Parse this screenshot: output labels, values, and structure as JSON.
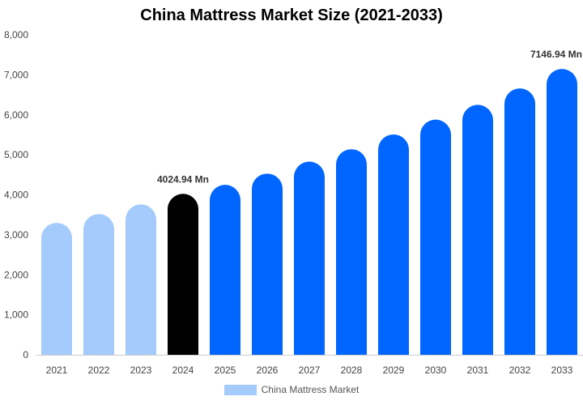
{
  "chart_data": {
    "type": "bar",
    "title": "China Mattress Market Size (2021-2033)",
    "xlabel": "",
    "ylabel": "",
    "categories": [
      "2021",
      "2022",
      "2023",
      "2024",
      "2025",
      "2026",
      "2027",
      "2028",
      "2029",
      "2030",
      "2031",
      "2032",
      "2033"
    ],
    "series": [
      {
        "name": "China Mattress Market",
        "values": [
          3300,
          3520,
          3760,
          4024.94,
          4250,
          4530,
          4830,
          5140,
          5510,
          5880,
          6250,
          6660,
          7146.94
        ]
      }
    ],
    "ylim": [
      0,
      8000
    ],
    "yticks": [
      0,
      1000,
      2000,
      3000,
      4000,
      5000,
      6000,
      7000,
      8000
    ],
    "ytick_labels": [
      "0",
      "1,000",
      "2,000",
      "3,000",
      "4,000",
      "5,000",
      "6,000",
      "7,000",
      "8,000"
    ],
    "bar_colors": [
      "#a4cbfb",
      "#a4cbfb",
      "#a4cbfb",
      "#000000",
      "#0066ff",
      "#0066ff",
      "#0066ff",
      "#0066ff",
      "#0066ff",
      "#0066ff",
      "#0066ff",
      "#0066ff",
      "#0066ff"
    ],
    "annotations": [
      {
        "category": "2024",
        "text": "4024.94 Mn"
      },
      {
        "category": "2033",
        "text": "7146.94 Mn"
      }
    ],
    "legend": {
      "label": "China Mattress Market",
      "color": "#a4cbfb",
      "position": "bottom"
    },
    "grid": false
  }
}
